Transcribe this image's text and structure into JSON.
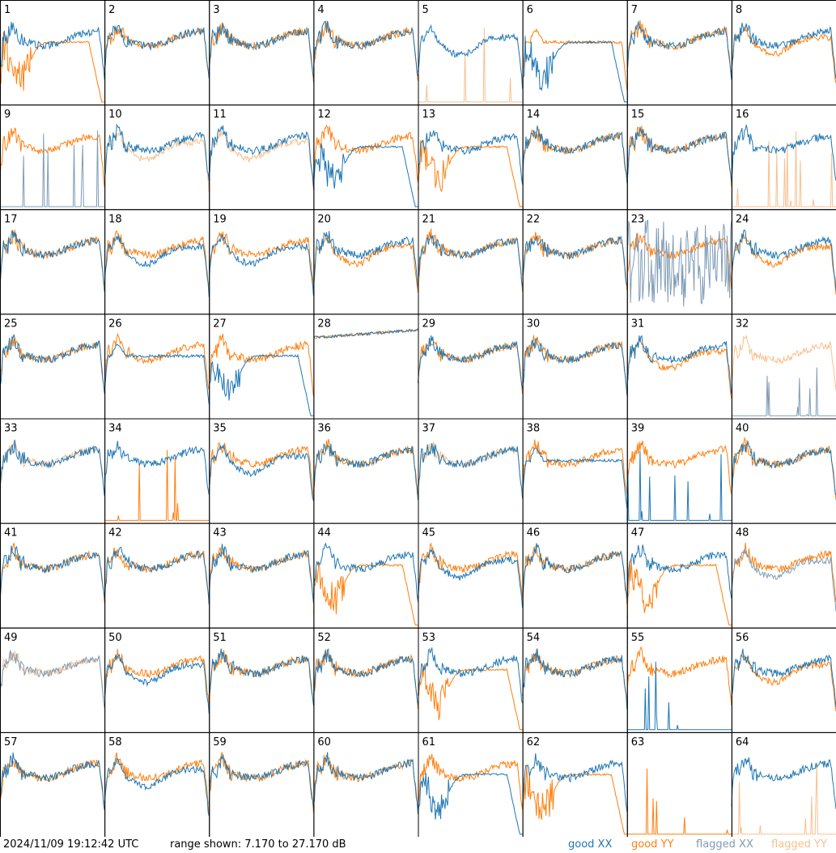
{
  "chart_data": {
    "type": "line",
    "layout": "small-multiples 8x8",
    "x_axis": "frequency channel (unlabeled)",
    "y_range_db": [
      7.17,
      27.17
    ],
    "range_text": "range shown: 7.170 to 27.170 dB",
    "timestamp": "2024/11/09 19:12:42 UTC",
    "legend": [
      {
        "key": "good_xx",
        "label": "good XX",
        "color": "#1f77b4"
      },
      {
        "key": "good_yy",
        "label": "good YY",
        "color": "#ff7f0e"
      },
      {
        "key": "flagged_xx",
        "label": "flagged XX",
        "color": "#7f9cb6"
      },
      {
        "key": "flagged_yy",
        "label": "flagged YY",
        "color": "#f7c08e"
      }
    ],
    "panels": [
      {
        "id": "1",
        "xx": "good",
        "yy": "good",
        "xx_shape": "normal",
        "yy_shape": "bowl"
      },
      {
        "id": "2",
        "xx": "good",
        "yy": "good",
        "xx_shape": "normal",
        "yy_shape": "normal"
      },
      {
        "id": "3",
        "xx": "good",
        "yy": "good",
        "xx_shape": "normal",
        "yy_shape": "normal"
      },
      {
        "id": "4",
        "xx": "good",
        "yy": "good",
        "xx_shape": "normal",
        "yy_shape": "normal"
      },
      {
        "id": "5",
        "xx": "good",
        "yy": "flagged",
        "xx_shape": "dip",
        "yy_shape": "spikes"
      },
      {
        "id": "6",
        "xx": "good",
        "yy": "good",
        "xx_shape": "bowl",
        "yy_shape": "flat"
      },
      {
        "id": "7",
        "xx": "good",
        "yy": "good",
        "xx_shape": "normal",
        "yy_shape": "normal"
      },
      {
        "id": "8",
        "xx": "good",
        "yy": "good",
        "xx_shape": "normal",
        "yy_shape": "dip"
      },
      {
        "id": "9",
        "xx": "flagged",
        "yy": "good",
        "xx_shape": "spikes",
        "yy_shape": "normal"
      },
      {
        "id": "10",
        "xx": "good",
        "yy": "flagged",
        "xx_shape": "normal",
        "yy_shape": "dip"
      },
      {
        "id": "11",
        "xx": "good",
        "yy": "flagged",
        "xx_shape": "normal",
        "yy_shape": "dip"
      },
      {
        "id": "12",
        "xx": "good",
        "yy": "good",
        "xx_shape": "bowl",
        "yy_shape": "normal"
      },
      {
        "id": "13",
        "xx": "good",
        "yy": "good",
        "xx_shape": "normal",
        "yy_shape": "bowl"
      },
      {
        "id": "14",
        "xx": "good",
        "yy": "good",
        "xx_shape": "normal",
        "yy_shape": "normal"
      },
      {
        "id": "15",
        "xx": "good",
        "yy": "good",
        "xx_shape": "normal",
        "yy_shape": "normal"
      },
      {
        "id": "16",
        "xx": "good",
        "yy": "flagged",
        "xx_shape": "normal",
        "yy_shape": "spikes"
      },
      {
        "id": "17",
        "xx": "good",
        "yy": "good",
        "xx_shape": "normal",
        "yy_shape": "normal"
      },
      {
        "id": "18",
        "xx": "good",
        "yy": "good",
        "xx_shape": "dip",
        "yy_shape": "normal"
      },
      {
        "id": "19",
        "xx": "good",
        "yy": "good",
        "xx_shape": "dip",
        "yy_shape": "normal"
      },
      {
        "id": "20",
        "xx": "good",
        "yy": "good",
        "xx_shape": "normal",
        "yy_shape": "dip"
      },
      {
        "id": "21",
        "xx": "good",
        "yy": "good",
        "xx_shape": "normal",
        "yy_shape": "normal"
      },
      {
        "id": "22",
        "xx": "good",
        "yy": "good",
        "xx_shape": "normal",
        "yy_shape": "normal"
      },
      {
        "id": "23",
        "xx": "flagged",
        "yy": "good",
        "xx_shape": "noise",
        "yy_shape": "normal"
      },
      {
        "id": "24",
        "xx": "good",
        "yy": "good",
        "xx_shape": "normal",
        "yy_shape": "dip"
      },
      {
        "id": "25",
        "xx": "good",
        "yy": "good",
        "xx_shape": "normal",
        "yy_shape": "normal"
      },
      {
        "id": "26",
        "xx": "good",
        "yy": "good",
        "xx_shape": "flat",
        "yy_shape": "normal"
      },
      {
        "id": "27",
        "xx": "good",
        "yy": "good",
        "xx_shape": "bowl",
        "yy_shape": "normal"
      },
      {
        "id": "28",
        "xx": "good",
        "yy": "good",
        "xx_shape": "high",
        "yy_shape": "high"
      },
      {
        "id": "29",
        "xx": "good",
        "yy": "good",
        "xx_shape": "normal",
        "yy_shape": "normal"
      },
      {
        "id": "30",
        "xx": "good",
        "yy": "good",
        "xx_shape": "normal",
        "yy_shape": "normal"
      },
      {
        "id": "31",
        "xx": "good",
        "yy": "good",
        "xx_shape": "normal",
        "yy_shape": "dip"
      },
      {
        "id": "32",
        "xx": "flagged",
        "yy": "flagged",
        "xx_shape": "spikes",
        "yy_shape": "normal"
      },
      {
        "id": "33",
        "xx": "good",
        "yy": "flagged",
        "xx_shape": "normal",
        "yy_shape": "normal"
      },
      {
        "id": "34",
        "xx": "good",
        "yy": "good",
        "xx_shape": "normal",
        "yy_shape": "spikes"
      },
      {
        "id": "35",
        "xx": "good",
        "yy": "good",
        "xx_shape": "dip",
        "yy_shape": "normal"
      },
      {
        "id": "36",
        "xx": "good",
        "yy": "good",
        "xx_shape": "normal",
        "yy_shape": "normal"
      },
      {
        "id": "37",
        "xx": "good",
        "yy": "flagged",
        "xx_shape": "normal",
        "yy_shape": "normal"
      },
      {
        "id": "38",
        "xx": "good",
        "yy": "good",
        "xx_shape": "flat",
        "yy_shape": "normal"
      },
      {
        "id": "39",
        "xx": "good",
        "yy": "good",
        "xx_shape": "spikes",
        "yy_shape": "normal"
      },
      {
        "id": "40",
        "xx": "good",
        "yy": "good",
        "xx_shape": "normal",
        "yy_shape": "normal"
      },
      {
        "id": "41",
        "xx": "good",
        "yy": "good",
        "xx_shape": "normal",
        "yy_shape": "normal"
      },
      {
        "id": "42",
        "xx": "good",
        "yy": "good",
        "xx_shape": "normal",
        "yy_shape": "normal"
      },
      {
        "id": "43",
        "xx": "good",
        "yy": "good",
        "xx_shape": "normal",
        "yy_shape": "normal"
      },
      {
        "id": "44",
        "xx": "good",
        "yy": "good",
        "xx_shape": "normal",
        "yy_shape": "bowl"
      },
      {
        "id": "45",
        "xx": "good",
        "yy": "good",
        "xx_shape": "dip",
        "yy_shape": "normal"
      },
      {
        "id": "46",
        "xx": "good",
        "yy": "good",
        "xx_shape": "normal",
        "yy_shape": "normal"
      },
      {
        "id": "47",
        "xx": "good",
        "yy": "good",
        "xx_shape": "normal",
        "yy_shape": "bowl"
      },
      {
        "id": "48",
        "xx": "flagged",
        "yy": "good",
        "xx_shape": "dip",
        "yy_shape": "normal"
      },
      {
        "id": "49",
        "xx": "flagged",
        "yy": "flagged",
        "xx_shape": "normal",
        "yy_shape": "normal"
      },
      {
        "id": "50",
        "xx": "good",
        "yy": "good",
        "xx_shape": "dip",
        "yy_shape": "normal"
      },
      {
        "id": "51",
        "xx": "good",
        "yy": "good",
        "xx_shape": "normal",
        "yy_shape": "normal"
      },
      {
        "id": "52",
        "xx": "good",
        "yy": "good",
        "xx_shape": "normal",
        "yy_shape": "normal"
      },
      {
        "id": "53",
        "xx": "good",
        "yy": "good",
        "xx_shape": "normal",
        "yy_shape": "bowl"
      },
      {
        "id": "54",
        "xx": "good",
        "yy": "good",
        "xx_shape": "normal",
        "yy_shape": "normal"
      },
      {
        "id": "55",
        "xx": "good",
        "yy": "good",
        "xx_shape": "spikes",
        "yy_shape": "normal"
      },
      {
        "id": "56",
        "xx": "good",
        "yy": "good",
        "xx_shape": "normal",
        "yy_shape": "dip"
      },
      {
        "id": "57",
        "xx": "good",
        "yy": "good",
        "xx_shape": "normal",
        "yy_shape": "normal"
      },
      {
        "id": "58",
        "xx": "good",
        "yy": "good",
        "xx_shape": "dip",
        "yy_shape": "normal"
      },
      {
        "id": "59",
        "xx": "good",
        "yy": "good",
        "xx_shape": "normal",
        "yy_shape": "normal"
      },
      {
        "id": "60",
        "xx": "good",
        "yy": "good",
        "xx_shape": "normal",
        "yy_shape": "normal"
      },
      {
        "id": "61",
        "xx": "good",
        "yy": "good",
        "xx_shape": "bowl",
        "yy_shape": "normal"
      },
      {
        "id": "62",
        "xx": "good",
        "yy": "good",
        "xx_shape": "normal",
        "yy_shape": "bowl"
      },
      {
        "id": "63",
        "xx": "none",
        "yy": "good",
        "xx_shape": "none",
        "yy_shape": "spikes"
      },
      {
        "id": "64",
        "xx": "good",
        "yy": "flagged",
        "xx_shape": "normal",
        "yy_shape": "spikes"
      }
    ]
  }
}
